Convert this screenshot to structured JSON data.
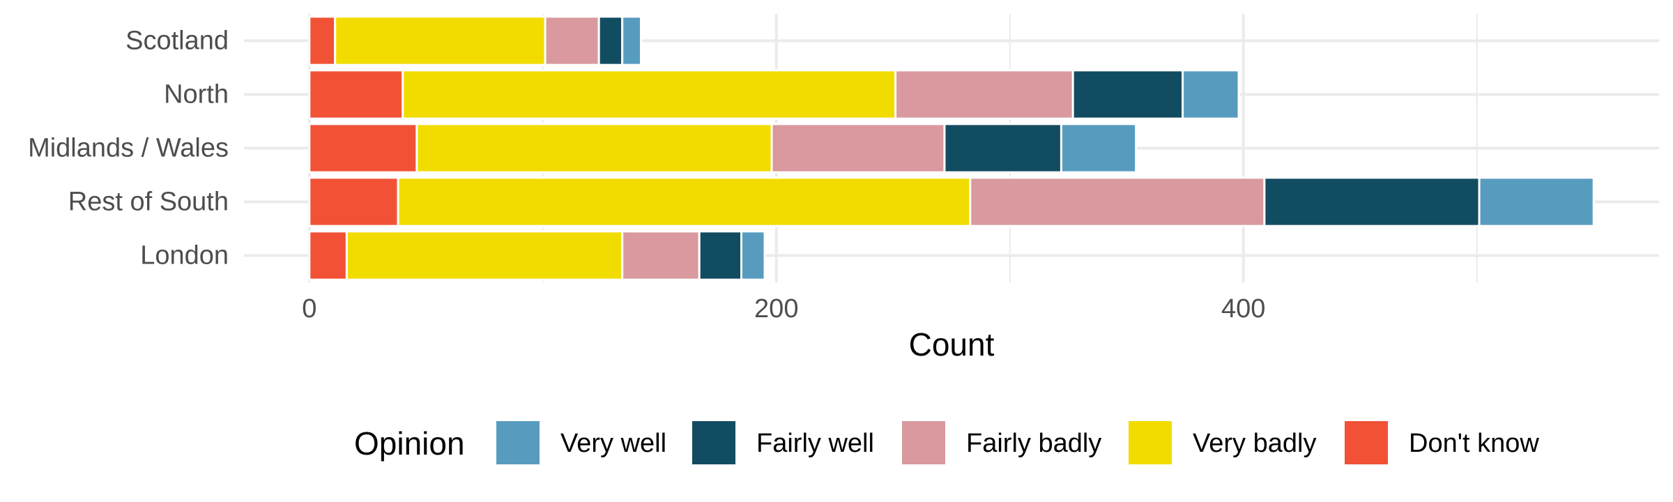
{
  "chart_data": {
    "type": "bar",
    "orientation": "horizontal",
    "stacked": true,
    "categories": [
      "Scotland",
      "North",
      "Midlands / Wales",
      "Rest of South",
      "London"
    ],
    "series": [
      {
        "name": "Don't know",
        "color": "#F15236",
        "values": [
          11,
          40,
          46,
          38,
          16
        ]
      },
      {
        "name": "Very badly",
        "color": "#F2DC00",
        "values": [
          90,
          211,
          152,
          245,
          118
        ]
      },
      {
        "name": "Fairly badly",
        "color": "#D9999E",
        "values": [
          23,
          76,
          74,
          126,
          33
        ]
      },
      {
        "name": "Fairly well",
        "color": "#124C61",
        "values": [
          10,
          47,
          50,
          92,
          18
        ]
      },
      {
        "name": "Very well",
        "color": "#579CBF",
        "values": [
          8,
          24,
          32,
          49,
          10
        ]
      }
    ],
    "xlabel": "Count",
    "ylabel": "",
    "xlim": [
      -28,
      578
    ],
    "xticks": [
      0,
      200,
      400
    ],
    "minor_xticks": [
      100,
      300,
      500
    ],
    "grid": true,
    "legend": {
      "title": "Opinion",
      "position": "bottom",
      "order": [
        "Very well",
        "Fairly well",
        "Fairly badly",
        "Very badly",
        "Don't know"
      ]
    }
  }
}
